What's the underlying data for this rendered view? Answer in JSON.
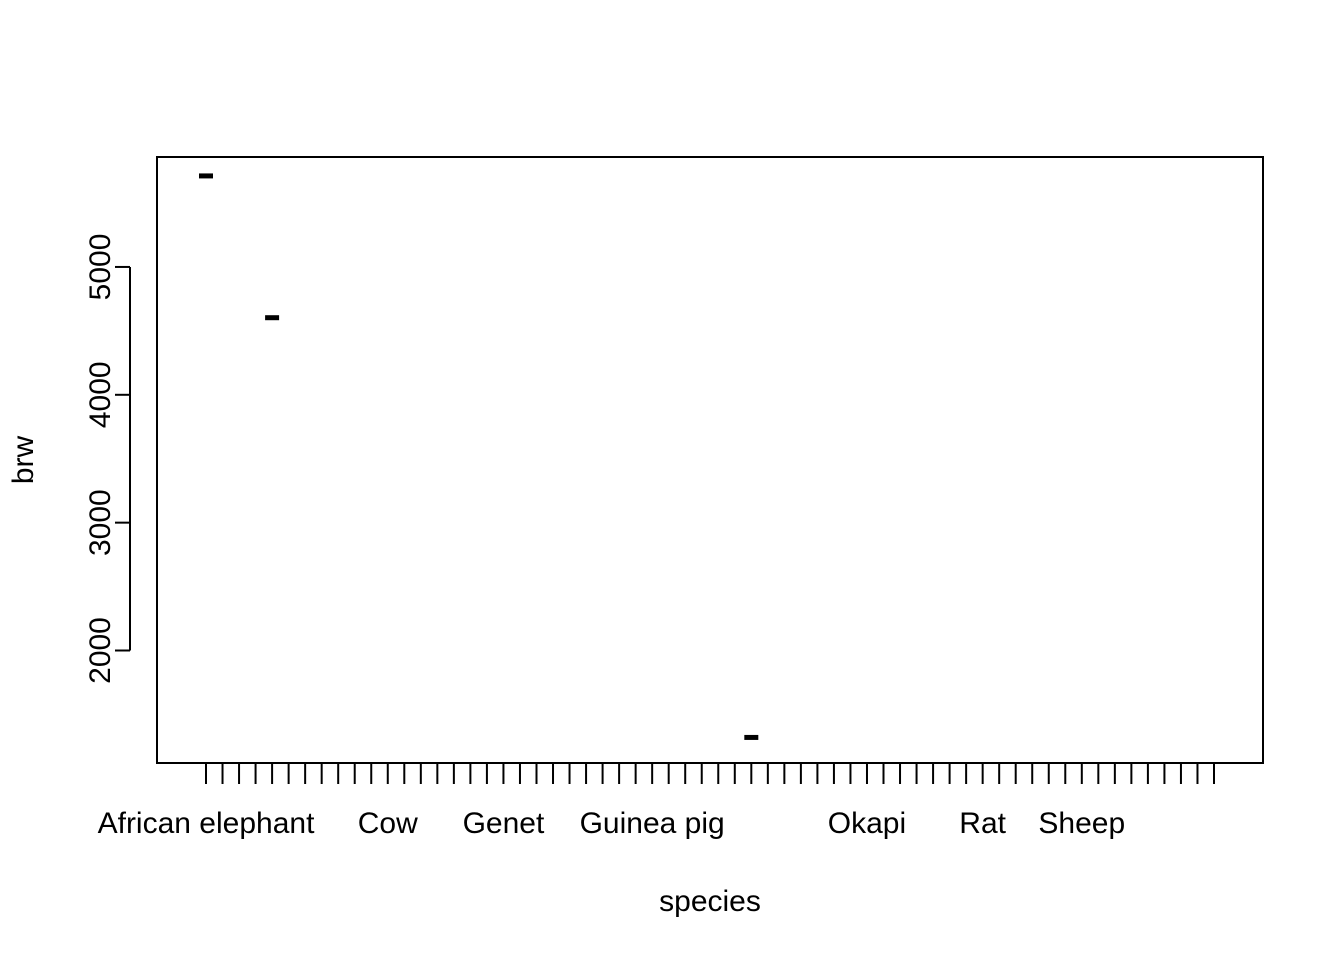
{
  "chart_data": {
    "type": "box",
    "title": "",
    "xlabel": "species",
    "ylabel": "brw",
    "categories_count": 62,
    "category_tick_labels": [
      {
        "index": 0,
        "label": "African elephant"
      },
      {
        "index": 11,
        "label": "Cow"
      },
      {
        "index": 18,
        "label": "Genet"
      },
      {
        "index": 27,
        "label": "Guinea pig"
      },
      {
        "index": 40,
        "label": "Okapi"
      },
      {
        "index": 47,
        "label": "Rat"
      },
      {
        "index": 53,
        "label": "Sheep"
      }
    ],
    "y_ticks": [
      2000,
      3000,
      4000,
      5000
    ],
    "ylim": [
      1120,
      5860
    ],
    "grid": false,
    "legend": "none",
    "points": [
      {
        "index": 0,
        "value": 5712
      },
      {
        "index": 4,
        "value": 4603
      },
      {
        "index": 33,
        "value": 1320
      }
    ],
    "colors": {
      "line": "#000000",
      "background": "#ffffff"
    }
  }
}
